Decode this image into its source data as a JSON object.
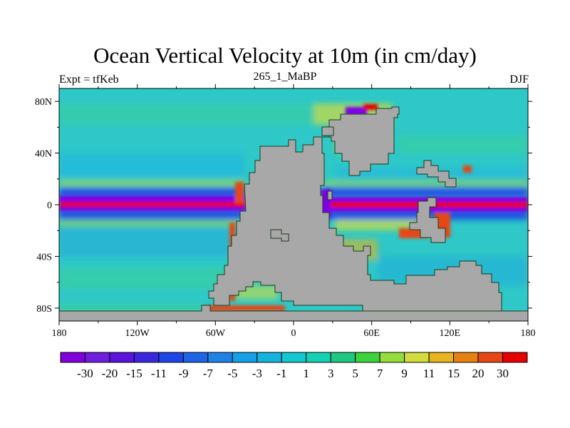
{
  "title": "Ocean Vertical Velocity at 10m (in cm/day)",
  "subtitle_left": "Expt = tfKeb",
  "subtitle_center": "265_1_MaBP",
  "subtitle_right": "DJF",
  "map": {
    "projection": "cylindrical equidistant",
    "lon_range": [
      -180,
      180
    ],
    "lat_range": [
      -90,
      90
    ],
    "land_color": "#a8a8a8",
    "x_ticks": [
      "180",
      "120W",
      "60W",
      "0",
      "60E",
      "120E",
      "180"
    ],
    "y_ticks": [
      "80N",
      "40N",
      "0",
      "40S",
      "80S"
    ],
    "ocean_background_color": "#2ec8c8",
    "equatorial_upwelling_color": "#e60000",
    "off_equator_downwelling_color": "#7d00e6"
  },
  "colorbar": {
    "labels": [
      "-30",
      "-20",
      "-15",
      "-11",
      "-9",
      "-7",
      "-5",
      "-3",
      "-1",
      "1",
      "3",
      "5",
      "7",
      "9",
      "11",
      "15",
      "20",
      "30"
    ],
    "colors": [
      "#8200dc",
      "#6e1edc",
      "#5a14dc",
      "#3c28dc",
      "#1e46e6",
      "#1e64e6",
      "#1e82e6",
      "#14a0e6",
      "#14b4dc",
      "#14c8d2",
      "#14d2b4",
      "#1ec882",
      "#3cd23c",
      "#96dc3c",
      "#d2dc3c",
      "#e6b41e",
      "#e68214",
      "#e64614",
      "#e60000"
    ]
  }
}
